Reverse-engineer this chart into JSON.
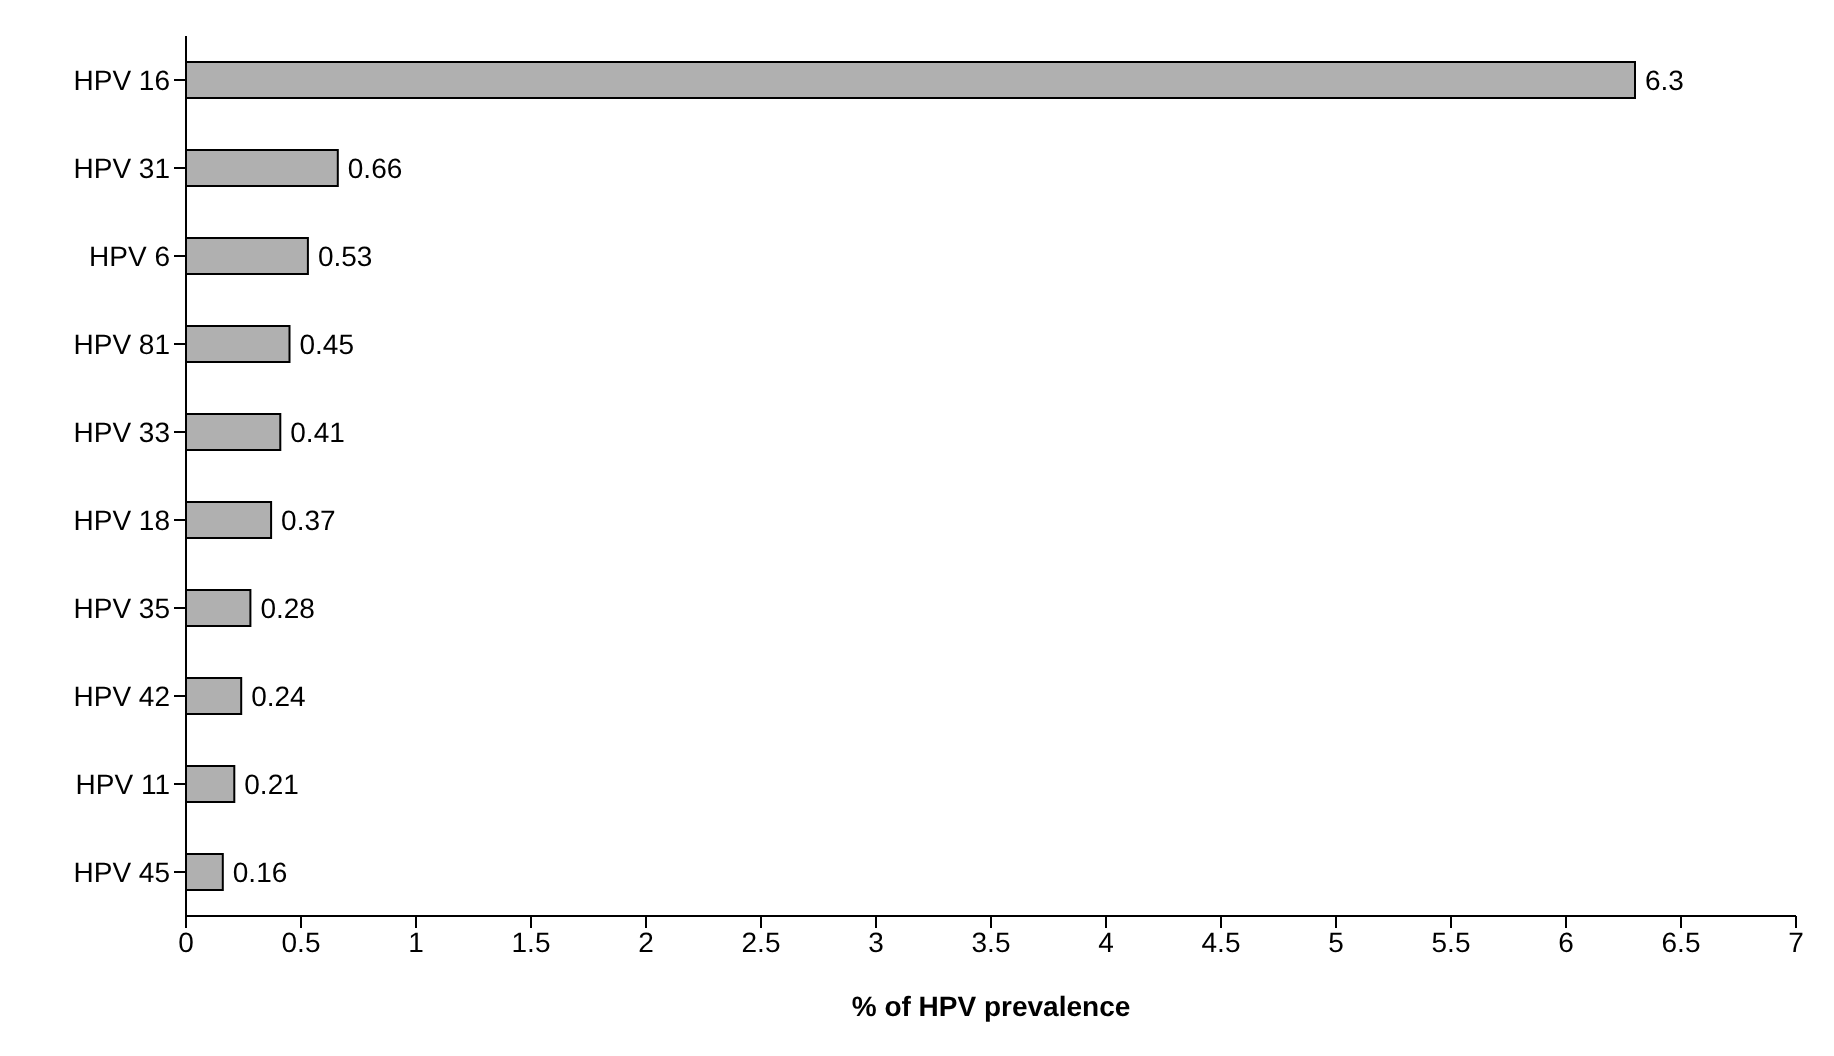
{
  "chart_data": {
    "type": "bar",
    "orientation": "horizontal",
    "xlabel": "% of HPV prevalence",
    "categories": [
      "HPV 16",
      "HPV 31",
      "HPV 6",
      "HPV 81",
      "HPV 33",
      "HPV 18",
      "HPV 35",
      "HPV 42",
      "HPV 11",
      "HPV 45"
    ],
    "values": [
      6.3,
      0.66,
      0.53,
      0.45,
      0.41,
      0.37,
      0.28,
      0.24,
      0.21,
      0.16
    ],
    "color": "#b0b0b0",
    "xlim": [
      0,
      7
    ],
    "xticks": [
      0,
      0.5,
      1,
      1.5,
      2,
      2.5,
      3,
      3.5,
      4,
      4.5,
      5,
      5.5,
      6,
      6.5,
      7
    ],
    "data_labels": true,
    "grid": false
  }
}
